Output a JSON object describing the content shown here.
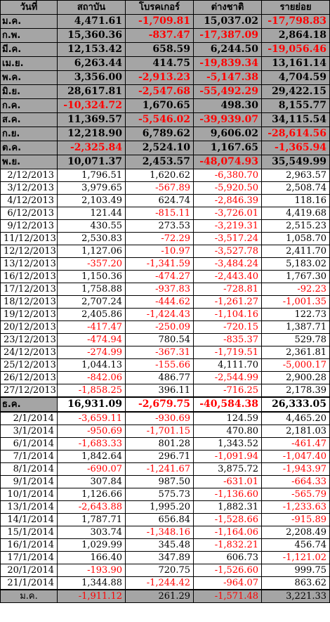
{
  "headers": [
    "วันที่",
    "สถาบัน",
    "โบรคเกอร์",
    "ต่างชาติ",
    "รายย่อย"
  ],
  "colors": {
    "header_bg": "#a5a5a5",
    "negative": "#ff0000",
    "positive": "#000000"
  },
  "rows": [
    {
      "type": "month",
      "label": "ม.ค.",
      "values": [
        "4,471.61",
        "-1,709.81",
        "15,037.02",
        "-17,798.83"
      ]
    },
    {
      "type": "month",
      "label": "ก.พ.",
      "values": [
        "15,360.36",
        "-837.47",
        "-17,387.09",
        "2,864.18"
      ]
    },
    {
      "type": "month",
      "label": "มี.ค.",
      "values": [
        "12,153.42",
        "658.59",
        "6,244.50",
        "-19,056.46"
      ]
    },
    {
      "type": "month",
      "label": "เม.ย.",
      "values": [
        "6,263.44",
        "414.75",
        "-19,839.34",
        "13,161.14"
      ]
    },
    {
      "type": "month",
      "label": "พ.ค.",
      "values": [
        "3,356.00",
        "-2,913.23",
        "-5,147.38",
        "4,704.59"
      ]
    },
    {
      "type": "month",
      "label": "มิ.ย.",
      "values": [
        "28,617.81",
        "-2,547.68",
        "-55,492.29",
        "29,422.15"
      ]
    },
    {
      "type": "month",
      "label": "ก.ค.",
      "values": [
        "-10,324.72",
        "1,670.65",
        "498.30",
        "8,155.77"
      ]
    },
    {
      "type": "month",
      "label": "ส.ค.",
      "values": [
        "11,369.57",
        "-5,546.02",
        "-39,939.07",
        "34,115.54"
      ]
    },
    {
      "type": "month",
      "label": "ก.ย.",
      "values": [
        "12,218.90",
        "6,789.62",
        "9,606.02",
        "-28,614.56"
      ]
    },
    {
      "type": "month",
      "label": "ต.ค.",
      "values": [
        "-2,325.84",
        "2,524.10",
        "1,167.65",
        "-1,365.94"
      ]
    },
    {
      "type": "month",
      "label": "พ.ย.",
      "values": [
        "10,071.37",
        "2,453.57",
        "-48,074.93",
        "35,549.99"
      ]
    },
    {
      "type": "daily",
      "label": "2/12/2013",
      "values": [
        "1,796.51",
        "1,620.62",
        "-6,380.70",
        "2,963.57"
      ]
    },
    {
      "type": "daily",
      "label": "3/12/2013",
      "values": [
        "3,979.65",
        "-567.89",
        "-5,920.50",
        "2,508.74"
      ]
    },
    {
      "type": "daily",
      "label": "4/12/2013",
      "values": [
        "2,103.49",
        "624.74",
        "-2,846.39",
        "118.16"
      ]
    },
    {
      "type": "daily",
      "label": "6/12/2013",
      "values": [
        "121.44",
        "-815.11",
        "-3,726.01",
        "4,419.68"
      ]
    },
    {
      "type": "daily",
      "label": "9/12/2013",
      "values": [
        "430.55",
        "273.53",
        "-3,219.31",
        "2,515.23"
      ]
    },
    {
      "type": "daily",
      "label": "11/12/2013",
      "values": [
        "2,530.83",
        "-72.29",
        "-3,517.24",
        "1,058.70"
      ]
    },
    {
      "type": "daily",
      "label": "12/12/2013",
      "values": [
        "1,127.06",
        "-10.97",
        "-3,527.78",
        "2,411.70"
      ]
    },
    {
      "type": "daily",
      "label": "13/12/2013",
      "values": [
        "-357.20",
        "-1,341.59",
        "-3,484.24",
        "5,183.02"
      ]
    },
    {
      "type": "daily",
      "label": "16/12/2013",
      "values": [
        "1,150.36",
        "-474.27",
        "-2,443.40",
        "1,767.30"
      ]
    },
    {
      "type": "daily",
      "label": "17/12/2013",
      "values": [
        "1,758.88",
        "-937.83",
        "-728.81",
        "-92.23"
      ]
    },
    {
      "type": "daily",
      "label": "18/12/2013",
      "values": [
        "2,707.24",
        "-444.62",
        "-1,261.27",
        "-1,001.35"
      ]
    },
    {
      "type": "daily",
      "label": "19/12/2013",
      "values": [
        "2,405.86",
        "-1,424.43",
        "-1,104.16",
        "122.73"
      ]
    },
    {
      "type": "daily",
      "label": "20/12/2013",
      "values": [
        "-417.47",
        "-250.09",
        "-720.15",
        "1,387.71"
      ]
    },
    {
      "type": "daily",
      "label": "23/12/2013",
      "values": [
        "-474.94",
        "780.54",
        "-835.37",
        "529.78"
      ]
    },
    {
      "type": "daily",
      "label": "24/12/2013",
      "values": [
        "-274.99",
        "-367.31",
        "-1,719.51",
        "2,361.81"
      ]
    },
    {
      "type": "daily",
      "label": "25/12/2013",
      "values": [
        "1,044.13",
        "-155.66",
        "4,111.70",
        "-5,000.17"
      ]
    },
    {
      "type": "daily",
      "label": "26/12/2013",
      "values": [
        "-842.06",
        "486.77",
        "-2,544.99",
        "2,900.28"
      ]
    },
    {
      "type": "daily",
      "label": "27/12/2013",
      "values": [
        "-1,858.25",
        "396.11",
        "-716.25",
        "2,178.39"
      ]
    },
    {
      "type": "summary",
      "label": "ธ.ค.",
      "values": [
        "16,931.09",
        "-2,679.75",
        "-40,584.38",
        "26,333.05"
      ]
    },
    {
      "type": "daily",
      "label": "2/1/2014",
      "values": [
        "-3,659.11",
        "-930.69",
        "124.59",
        "4,465.20"
      ]
    },
    {
      "type": "daily",
      "label": "3/1/2014",
      "values": [
        "-950.69",
        "-1,701.15",
        "470.80",
        "2,181.03"
      ]
    },
    {
      "type": "daily",
      "label": "6/1/2014",
      "values": [
        "-1,683.33",
        "801.28",
        "1,343.52",
        "-461.47"
      ]
    },
    {
      "type": "daily",
      "label": "7/1/2014",
      "values": [
        "1,842.64",
        "296.71",
        "-1,091.94",
        "-1,047.40"
      ]
    },
    {
      "type": "daily",
      "label": "8/1/2014",
      "values": [
        "-690.07",
        "-1,241.67",
        "3,875.72",
        "-1,943.97"
      ]
    },
    {
      "type": "daily",
      "label": "9/1/2014",
      "values": [
        "307.84",
        "987.50",
        "-631.01",
        "-664.33"
      ]
    },
    {
      "type": "daily",
      "label": "10/1/2014",
      "values": [
        "1,126.66",
        "575.73",
        "-1,136.60",
        "-565.79"
      ]
    },
    {
      "type": "daily",
      "label": "13/1/2014",
      "values": [
        "-2,643.88",
        "1,995.20",
        "1,882.31",
        "-1,233.63"
      ]
    },
    {
      "type": "daily",
      "label": "14/1/2014",
      "values": [
        "1,787.71",
        "656.84",
        "-1,528.66",
        "-915.89"
      ]
    },
    {
      "type": "daily",
      "label": "15/1/2014",
      "values": [
        "303.74",
        "-1,348.16",
        "-1,164.06",
        "2,208.49"
      ]
    },
    {
      "type": "daily",
      "label": "16/1/2014",
      "values": [
        "1,029.99",
        "345.48",
        "-1,832.21",
        "456.74"
      ]
    },
    {
      "type": "daily",
      "label": "17/1/2014",
      "values": [
        "166.40",
        "347.89",
        "606.73",
        "-1,121.02"
      ]
    },
    {
      "type": "daily",
      "label": "20/1/2014",
      "values": [
        "-193.90",
        "720.75",
        "-1,526.60",
        "999.75"
      ]
    },
    {
      "type": "daily",
      "label": "21/1/2014",
      "values": [
        "1,344.88",
        "-1,244.42",
        "-964.07",
        "863.62"
      ]
    },
    {
      "type": "summary-total",
      "label": "ม.ค.",
      "values": [
        "-1,911.12",
        "261.29",
        "-1,571.48",
        "3,221.33"
      ]
    }
  ]
}
